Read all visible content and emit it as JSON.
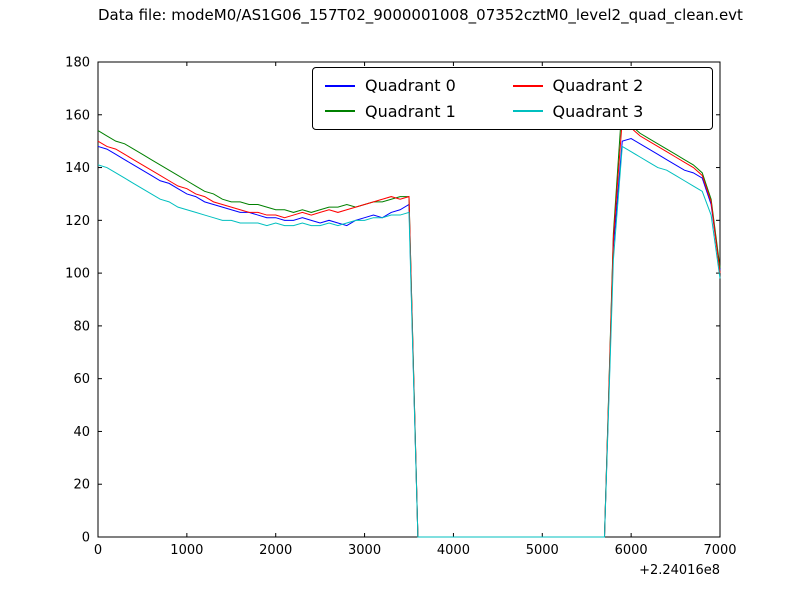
{
  "chart_data": {
    "type": "line",
    "title": "Data file: modeM0/AS1G06_157T02_9000001008_07352cztM0_level2_quad_clean.evt",
    "x_offset_label": "+2.24016e8",
    "xlim": [
      0,
      7000
    ],
    "ylim": [
      0,
      180
    ],
    "xticks": [
      0,
      1000,
      2000,
      3000,
      4000,
      5000,
      6000,
      7000
    ],
    "yticks": [
      0,
      20,
      40,
      60,
      80,
      100,
      120,
      140,
      160,
      180
    ],
    "grid": false,
    "legend_position": "upper center, 2 columns",
    "x": [
      0,
      100,
      200,
      300,
      400,
      500,
      600,
      700,
      800,
      900,
      1000,
      1100,
      1200,
      1300,
      1400,
      1500,
      1600,
      1700,
      1800,
      1900,
      2000,
      2100,
      2200,
      2300,
      2400,
      2500,
      2600,
      2700,
      2800,
      2900,
      3000,
      3100,
      3200,
      3300,
      3400,
      3500,
      3600,
      3700,
      3800,
      3900,
      4000,
      4100,
      4200,
      4300,
      4400,
      4500,
      4600,
      4700,
      4800,
      4900,
      5000,
      5100,
      5200,
      5300,
      5400,
      5500,
      5600,
      5700,
      5800,
      5900,
      6000,
      6100,
      6200,
      6300,
      6400,
      6500,
      6600,
      6700,
      6800,
      6900,
      7000
    ],
    "series": [
      {
        "name": "Quadrant 0",
        "color": "#0000ff",
        "values": [
          148,
          147,
          145,
          143,
          141,
          139,
          137,
          135,
          134,
          132,
          130,
          129,
          127,
          126,
          125,
          124,
          123,
          123,
          122,
          121,
          121,
          120,
          120,
          121,
          120,
          119,
          120,
          119,
          118,
          120,
          121,
          122,
          121,
          123,
          124,
          126,
          0,
          0,
          0,
          0,
          0,
          0,
          0,
          0,
          0,
          0,
          0,
          0,
          0,
          0,
          0,
          0,
          0,
          0,
          0,
          0,
          0,
          0,
          110,
          150,
          151,
          149,
          147,
          145,
          143,
          141,
          139,
          138,
          136,
          126,
          101
        ]
      },
      {
        "name": "Quadrant 1",
        "color": "#008000",
        "values": [
          154,
          152,
          150,
          149,
          147,
          145,
          143,
          141,
          139,
          137,
          135,
          133,
          131,
          130,
          128,
          127,
          127,
          126,
          126,
          125,
          124,
          124,
          123,
          124,
          123,
          124,
          125,
          125,
          126,
          125,
          126,
          127,
          127,
          128,
          129,
          129,
          0,
          0,
          0,
          0,
          0,
          0,
          0,
          0,
          0,
          0,
          0,
          0,
          0,
          0,
          0,
          0,
          0,
          0,
          0,
          0,
          0,
          0,
          115,
          165,
          156,
          153,
          151,
          149,
          147,
          145,
          143,
          141,
          138,
          128,
          102
        ]
      },
      {
        "name": "Quadrant 2",
        "color": "#ff0000",
        "values": [
          150,
          148,
          147,
          145,
          143,
          141,
          139,
          137,
          135,
          133,
          132,
          130,
          129,
          127,
          126,
          125,
          124,
          123,
          123,
          122,
          122,
          121,
          122,
          123,
          122,
          123,
          124,
          123,
          124,
          125,
          126,
          127,
          128,
          129,
          128,
          129,
          0,
          0,
          0,
          0,
          0,
          0,
          0,
          0,
          0,
          0,
          0,
          0,
          0,
          0,
          0,
          0,
          0,
          0,
          0,
          0,
          0,
          0,
          113,
          158,
          155,
          152,
          150,
          148,
          146,
          144,
          142,
          140,
          137,
          127,
          100
        ]
      },
      {
        "name": "Quadrant 3",
        "color": "#00bfbf",
        "values": [
          141,
          140,
          138,
          136,
          134,
          132,
          130,
          128,
          127,
          125,
          124,
          123,
          122,
          121,
          120,
          120,
          119,
          119,
          119,
          118,
          119,
          118,
          118,
          119,
          118,
          118,
          119,
          118,
          119,
          120,
          120,
          121,
          121,
          122,
          122,
          123,
          0,
          0,
          0,
          0,
          0,
          0,
          0,
          0,
          0,
          0,
          0,
          0,
          0,
          0,
          0,
          0,
          0,
          0,
          0,
          0,
          0,
          0,
          105,
          148,
          146,
          144,
          142,
          140,
          139,
          137,
          135,
          133,
          131,
          122,
          98
        ]
      }
    ]
  }
}
